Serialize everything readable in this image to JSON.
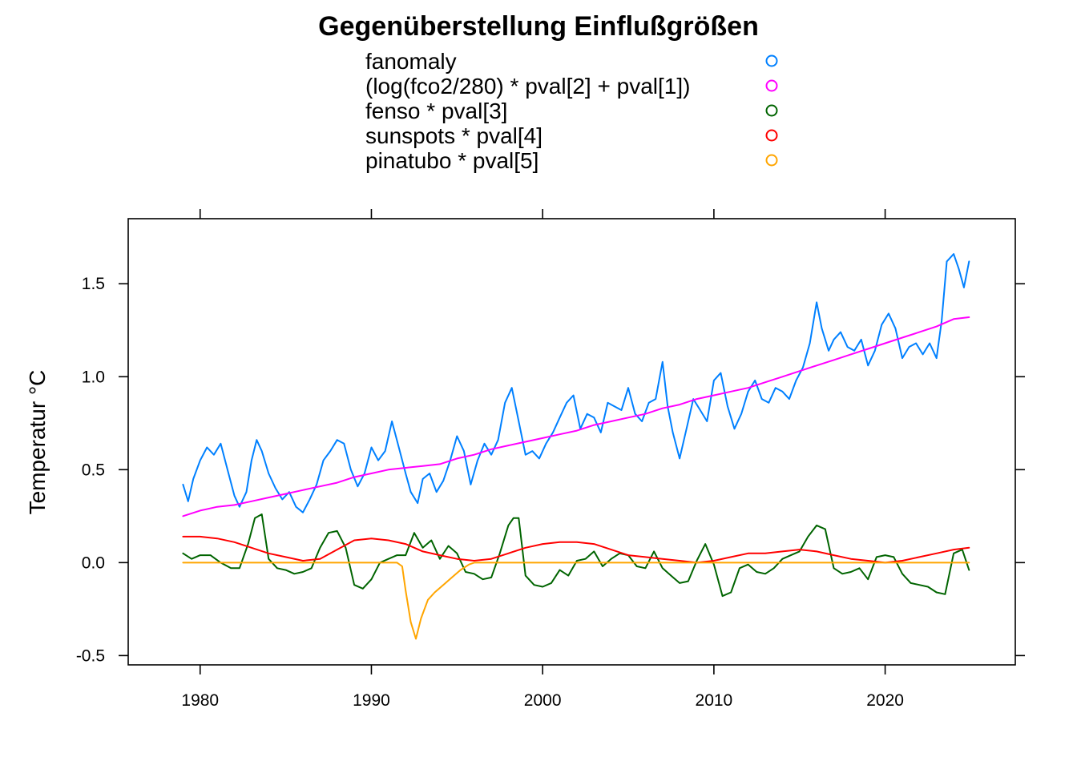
{
  "chart_data": {
    "type": "line",
    "title": "Gegenüberstellung Einflußgrößen",
    "xlabel": "",
    "ylabel": "Temperatur °C",
    "xlim": [
      1975.8,
      2027.6
    ],
    "ylim": [
      -0.55,
      1.85
    ],
    "xticks": [
      1980,
      1990,
      2000,
      2010,
      2020
    ],
    "yticks": [
      -0.5,
      0.0,
      0.5,
      1.0,
      1.5
    ],
    "xtick_labels": [
      "1980",
      "1990",
      "2000",
      "2010",
      "2020"
    ],
    "ytick_labels": [
      "-0.5",
      "0.0",
      "0.5",
      "1.0",
      "1.5"
    ],
    "grid": false,
    "legend_position": "top",
    "series": [
      {
        "name": "fanomaly",
        "color": "#0080ff",
        "x": [
          1979.0,
          1979.3,
          1979.6,
          1980.0,
          1980.4,
          1980.8,
          1981.2,
          1981.6,
          1982.0,
          1982.3,
          1982.7,
          1983.0,
          1983.3,
          1983.6,
          1984.0,
          1984.4,
          1984.8,
          1985.2,
          1985.6,
          1986.0,
          1986.4,
          1986.8,
          1987.2,
          1987.6,
          1988.0,
          1988.4,
          1988.8,
          1989.2,
          1989.6,
          1990.0,
          1990.4,
          1990.8,
          1991.2,
          1991.6,
          1992.0,
          1992.3,
          1992.7,
          1993.0,
          1993.4,
          1993.8,
          1994.2,
          1994.6,
          1995.0,
          1995.4,
          1995.8,
          1996.2,
          1996.6,
          1997.0,
          1997.4,
          1997.8,
          1998.2,
          1998.6,
          1999.0,
          1999.4,
          1999.8,
          2000.2,
          2000.6,
          2001.0,
          2001.4,
          2001.8,
          2002.2,
          2002.6,
          2003.0,
          2003.4,
          2003.8,
          2004.2,
          2004.6,
          2005.0,
          2005.4,
          2005.8,
          2006.2,
          2006.6,
          2007.0,
          2007.3,
          2007.6,
          2008.0,
          2008.4,
          2008.8,
          2009.2,
          2009.6,
          2010.0,
          2010.4,
          2010.8,
          2011.2,
          2011.6,
          2012.0,
          2012.4,
          2012.8,
          2013.2,
          2013.6,
          2014.0,
          2014.4,
          2014.8,
          2015.2,
          2015.6,
          2016.0,
          2016.3,
          2016.7,
          2017.0,
          2017.4,
          2017.8,
          2018.2,
          2018.6,
          2019.0,
          2019.4,
          2019.8,
          2020.2,
          2020.6,
          2021.0,
          2021.4,
          2021.8,
          2022.2,
          2022.6,
          2023.0,
          2023.3,
          2023.6,
          2024.0,
          2024.3,
          2024.6,
          2024.9
        ],
        "y": [
          0.42,
          0.33,
          0.45,
          0.55,
          0.62,
          0.58,
          0.64,
          0.5,
          0.36,
          0.3,
          0.38,
          0.55,
          0.66,
          0.6,
          0.48,
          0.4,
          0.34,
          0.38,
          0.3,
          0.27,
          0.34,
          0.42,
          0.55,
          0.6,
          0.66,
          0.64,
          0.5,
          0.41,
          0.48,
          0.62,
          0.55,
          0.6,
          0.76,
          0.62,
          0.48,
          0.38,
          0.32,
          0.45,
          0.48,
          0.38,
          0.44,
          0.55,
          0.68,
          0.6,
          0.42,
          0.55,
          0.64,
          0.58,
          0.66,
          0.86,
          0.94,
          0.76,
          0.58,
          0.6,
          0.56,
          0.64,
          0.7,
          0.78,
          0.86,
          0.9,
          0.72,
          0.8,
          0.78,
          0.7,
          0.86,
          0.84,
          0.82,
          0.94,
          0.8,
          0.76,
          0.86,
          0.88,
          1.08,
          0.84,
          0.7,
          0.56,
          0.72,
          0.88,
          0.82,
          0.76,
          0.98,
          1.02,
          0.84,
          0.72,
          0.8,
          0.92,
          0.98,
          0.88,
          0.86,
          0.94,
          0.92,
          0.88,
          0.98,
          1.05,
          1.18,
          1.4,
          1.26,
          1.14,
          1.2,
          1.24,
          1.16,
          1.14,
          1.2,
          1.06,
          1.14,
          1.28,
          1.34,
          1.26,
          1.1,
          1.16,
          1.18,
          1.12,
          1.18,
          1.1,
          1.3,
          1.62,
          1.66,
          1.58,
          1.48,
          1.62
        ]
      },
      {
        "name": "(log(fco2/280) * pval[2] + pval[1])",
        "color": "#ff00ff",
        "x": [
          1979.0,
          1980.0,
          1981.0,
          1982.0,
          1983.0,
          1984.0,
          1985.0,
          1986.0,
          1987.0,
          1988.0,
          1989.0,
          1990.0,
          1991.0,
          1992.0,
          1993.0,
          1994.0,
          1995.0,
          1996.0,
          1997.0,
          1998.0,
          1999.0,
          2000.0,
          2001.0,
          2002.0,
          2003.0,
          2004.0,
          2005.0,
          2006.0,
          2007.0,
          2008.0,
          2009.0,
          2010.0,
          2011.0,
          2012.0,
          2013.0,
          2014.0,
          2015.0,
          2016.0,
          2017.0,
          2018.0,
          2019.0,
          2020.0,
          2021.0,
          2022.0,
          2023.0,
          2024.0,
          2024.9
        ],
        "y": [
          0.25,
          0.28,
          0.3,
          0.31,
          0.33,
          0.35,
          0.37,
          0.39,
          0.41,
          0.43,
          0.46,
          0.48,
          0.5,
          0.51,
          0.52,
          0.53,
          0.56,
          0.58,
          0.61,
          0.63,
          0.65,
          0.67,
          0.69,
          0.71,
          0.74,
          0.76,
          0.78,
          0.8,
          0.83,
          0.85,
          0.88,
          0.9,
          0.92,
          0.94,
          0.97,
          1.0,
          1.03,
          1.06,
          1.09,
          1.12,
          1.15,
          1.18,
          1.21,
          1.24,
          1.27,
          1.31,
          1.32
        ]
      },
      {
        "name": "fenso * pval[3]",
        "color": "#006400",
        "x": [
          1979.0,
          1979.5,
          1980.0,
          1980.6,
          1981.2,
          1981.8,
          1982.3,
          1982.8,
          1983.2,
          1983.6,
          1984.0,
          1984.5,
          1985.0,
          1985.5,
          1986.0,
          1986.5,
          1987.0,
          1987.5,
          1988.0,
          1988.5,
          1989.0,
          1989.5,
          1990.0,
          1990.5,
          1991.0,
          1991.5,
          1992.0,
          1992.5,
          1993.0,
          1993.5,
          1994.0,
          1994.5,
          1995.0,
          1995.5,
          1996.0,
          1996.5,
          1997.0,
          1997.5,
          1998.0,
          1998.3,
          1998.6,
          1999.0,
          1999.5,
          2000.0,
          2000.5,
          2001.0,
          2001.5,
          2002.0,
          2002.5,
          2003.0,
          2003.5,
          2004.0,
          2004.5,
          2005.0,
          2005.5,
          2006.0,
          2006.5,
          2007.0,
          2007.5,
          2008.0,
          2008.5,
          2009.0,
          2009.5,
          2010.0,
          2010.5,
          2011.0,
          2011.5,
          2012.0,
          2012.5,
          2013.0,
          2013.5,
          2014.0,
          2014.5,
          2015.0,
          2015.5,
          2016.0,
          2016.5,
          2017.0,
          2017.5,
          2018.0,
          2018.5,
          2019.0,
          2019.5,
          2020.0,
          2020.5,
          2021.0,
          2021.5,
          2022.0,
          2022.5,
          2023.0,
          2023.5,
          2024.0,
          2024.5,
          2024.9
        ],
        "y": [
          0.05,
          0.02,
          0.04,
          0.04,
          0.0,
          -0.03,
          -0.03,
          0.1,
          0.24,
          0.26,
          0.02,
          -0.03,
          -0.04,
          -0.06,
          -0.05,
          -0.03,
          0.08,
          0.16,
          0.17,
          0.08,
          -0.12,
          -0.14,
          -0.09,
          0.0,
          0.02,
          0.04,
          0.04,
          0.16,
          0.08,
          0.12,
          0.02,
          0.09,
          0.05,
          -0.05,
          -0.06,
          -0.09,
          -0.08,
          0.05,
          0.2,
          0.24,
          0.24,
          -0.07,
          -0.12,
          -0.13,
          -0.11,
          -0.04,
          -0.07,
          0.01,
          0.02,
          0.06,
          -0.02,
          0.02,
          0.05,
          0.04,
          -0.02,
          -0.03,
          0.06,
          -0.03,
          -0.07,
          -0.11,
          -0.1,
          0.01,
          0.1,
          -0.01,
          -0.18,
          -0.16,
          -0.03,
          -0.01,
          -0.05,
          -0.06,
          -0.03,
          0.02,
          0.04,
          0.06,
          0.14,
          0.2,
          0.18,
          -0.03,
          -0.06,
          -0.05,
          -0.03,
          -0.09,
          0.03,
          0.04,
          0.03,
          -0.06,
          -0.11,
          -0.12,
          -0.13,
          -0.16,
          -0.17,
          0.05,
          0.07,
          -0.04
        ]
      },
      {
        "name": "sunspots * pval[4]",
        "color": "#ff0000",
        "x": [
          1979.0,
          1980.0,
          1981.0,
          1982.0,
          1983.0,
          1984.0,
          1985.0,
          1986.0,
          1987.0,
          1988.0,
          1989.0,
          1990.0,
          1991.0,
          1992.0,
          1993.0,
          1994.0,
          1995.0,
          1996.0,
          1997.0,
          1998.0,
          1999.0,
          2000.0,
          2001.0,
          2002.0,
          2003.0,
          2004.0,
          2005.0,
          2006.0,
          2007.0,
          2008.0,
          2009.0,
          2010.0,
          2011.0,
          2012.0,
          2013.0,
          2014.0,
          2015.0,
          2016.0,
          2017.0,
          2018.0,
          2019.0,
          2020.0,
          2021.0,
          2022.0,
          2023.0,
          2024.0,
          2024.9
        ],
        "y": [
          0.14,
          0.14,
          0.13,
          0.11,
          0.08,
          0.05,
          0.03,
          0.01,
          0.02,
          0.07,
          0.12,
          0.13,
          0.12,
          0.1,
          0.06,
          0.04,
          0.02,
          0.01,
          0.02,
          0.05,
          0.08,
          0.1,
          0.11,
          0.11,
          0.1,
          0.07,
          0.04,
          0.03,
          0.02,
          0.01,
          0.0,
          0.01,
          0.03,
          0.05,
          0.05,
          0.06,
          0.07,
          0.06,
          0.04,
          0.02,
          0.01,
          0.0,
          0.01,
          0.03,
          0.05,
          0.07,
          0.08
        ]
      },
      {
        "name": "pinatubo * pval[5]",
        "color": "#ffa500",
        "x": [
          1979.0,
          1991.5,
          1991.8,
          1992.0,
          1992.3,
          1992.6,
          1992.9,
          1993.3,
          1993.7,
          1994.2,
          1994.7,
          1995.2,
          1995.7,
          1996.0,
          2024.9
        ],
        "y": [
          0.0,
          0.0,
          -0.02,
          -0.15,
          -0.32,
          -0.41,
          -0.3,
          -0.2,
          -0.16,
          -0.12,
          -0.08,
          -0.04,
          -0.01,
          0.0,
          0.0
        ]
      }
    ]
  }
}
